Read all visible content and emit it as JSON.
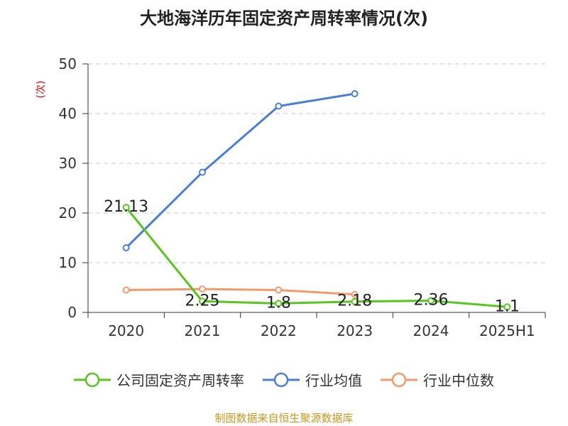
{
  "chart_data": {
    "type": "line",
    "title": "大地海洋历年固定资产周转率情况(次)",
    "ylabel": "(次)",
    "categories": [
      "2020",
      "2021",
      "2022",
      "2023",
      "2024",
      "2025H1"
    ],
    "ylim": [
      0,
      50
    ],
    "yticks": [
      0,
      10,
      20,
      30,
      40,
      50
    ],
    "grid": true,
    "legend_position": "bottom",
    "series": [
      {
        "name": "公司固定资产周转率",
        "color": "#5ac421",
        "values": [
          21.13,
          2.25,
          1.8,
          2.18,
          2.36,
          1.1
        ],
        "labels": [
          "21.13",
          "2.25",
          "1.8",
          "2.18",
          "2.36",
          "1.1"
        ]
      },
      {
        "name": "行业均值",
        "color": "#4a7fd9",
        "values": [
          13.0,
          28.2,
          41.5,
          44.0,
          null,
          null
        ]
      },
      {
        "name": "行业中位数",
        "color": "#f49a6a",
        "values": [
          4.5,
          4.7,
          4.5,
          3.6,
          null,
          null
        ]
      }
    ]
  },
  "source": "制图数据来自恒生聚源数据库"
}
